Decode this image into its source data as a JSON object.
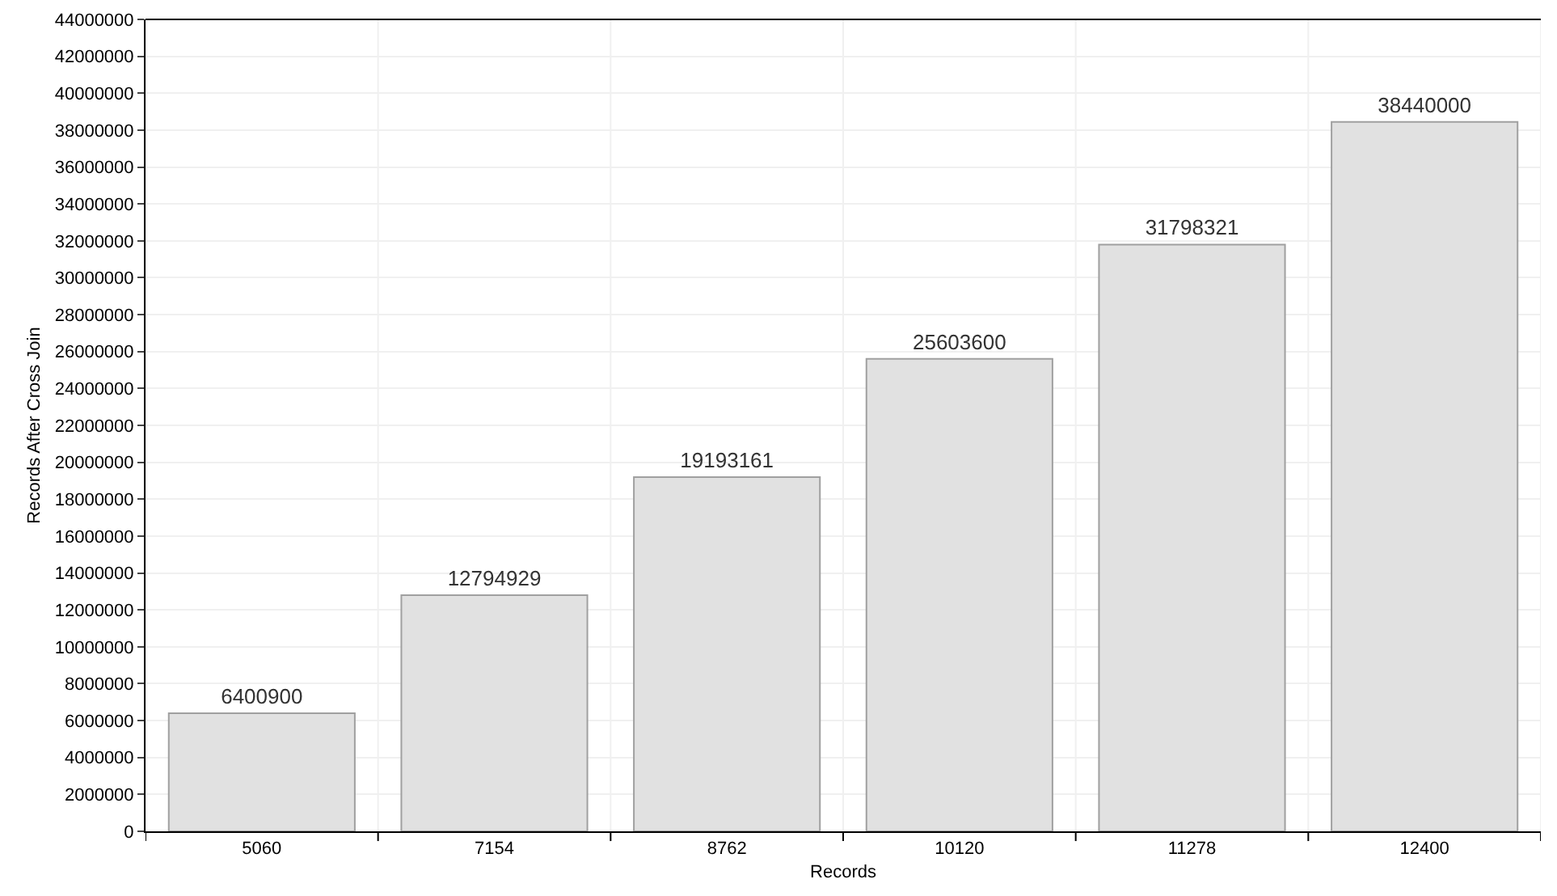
{
  "chart_data": {
    "type": "bar",
    "xlabel": "Records",
    "ylabel": "Records After Cross Join",
    "categories": [
      "5060",
      "7154",
      "8762",
      "10120",
      "11278",
      "12400"
    ],
    "values": [
      6400900,
      12794929,
      19193161,
      25603600,
      31798321,
      38440000
    ],
    "color": "#e1e1e1",
    "data_labels": true,
    "grid": true,
    "legend": false,
    "ylim": [
      0,
      44000000
    ],
    "yticks": [
      0,
      2000000,
      4000000,
      6000000,
      8000000,
      10000000,
      12000000,
      14000000,
      16000000,
      18000000,
      20000000,
      22000000,
      24000000,
      26000000,
      28000000,
      30000000,
      32000000,
      34000000,
      36000000,
      38000000,
      40000000,
      42000000,
      44000000
    ]
  }
}
